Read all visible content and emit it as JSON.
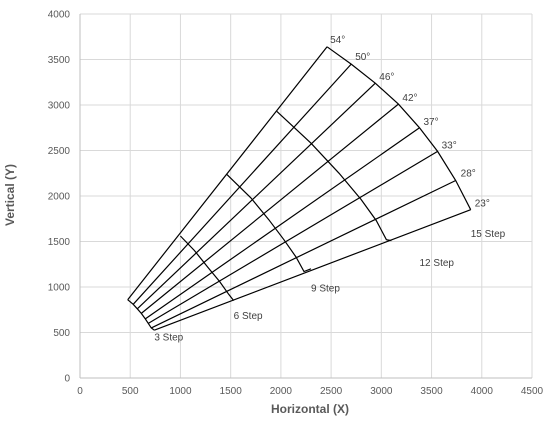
{
  "chart_data": {
    "type": "line",
    "xlabel": "Horizontal (X)",
    "ylabel": "Vertical (Y)",
    "xlim": [
      0,
      4500
    ],
    "ylim": [
      0,
      4000
    ],
    "x_ticks": [
      0,
      500,
      1000,
      1500,
      2000,
      2500,
      3000,
      3500,
      4000,
      4500
    ],
    "y_ticks": [
      0,
      500,
      1000,
      1500,
      2000,
      2500,
      3000,
      3500,
      4000
    ],
    "grid": true,
    "line_color": "#000000",
    "angle_labels": [
      "54°",
      "50°",
      "46°",
      "42°",
      "37°",
      "33°",
      "28°",
      "23°"
    ],
    "step_labels": [
      "3 Step",
      "6 Step",
      "9 Step",
      "12 Step",
      "15 Step"
    ],
    "series": [
      {
        "x": [
          475,
          2460
        ],
        "y": [
          860,
          3640
        ]
      },
      {
        "x": [
          530,
          2700
        ],
        "y": [
          810,
          3450
        ]
      },
      {
        "x": [
          570,
          2940
        ],
        "y": [
          760,
          3240
        ]
      },
      {
        "x": [
          610,
          3170
        ],
        "y": [
          710,
          3010
        ]
      },
      {
        "x": [
          650,
          3380
        ],
        "y": [
          650,
          2750
        ]
      },
      {
        "x": [
          680,
          3560
        ],
        "y": [
          600,
          2490
        ]
      },
      {
        "x": [
          710,
          3740
        ],
        "y": [
          550,
          2170
        ]
      },
      {
        "x": [
          740,
          3890
        ],
        "y": [
          525,
          1850
        ]
      },
      {
        "x": [
          475,
          530,
          570,
          610,
          650,
          680,
          710,
          740
        ],
        "y": [
          860,
          810,
          760,
          710,
          650,
          600,
          550,
          525
        ]
      },
      {
        "x": [
          1000,
          1140,
          1270,
          1390,
          1480,
          1530
        ],
        "y": [
          1560,
          1400,
          1220,
          1060,
          920,
          850
        ]
      },
      {
        "x": [
          1460,
          1700,
          1880,
          2030,
          2150,
          2230,
          2300
        ],
        "y": [
          2240,
          1980,
          1740,
          1520,
          1330,
          1170,
          1200
        ]
      },
      {
        "x": [
          1960,
          2300,
          2580,
          2800,
          2950,
          3050,
          3100
        ],
        "y": [
          2930,
          2580,
          2250,
          1960,
          1730,
          1520,
          1510
        ]
      },
      {
        "x": [
          2460,
          2700,
          2940,
          3170,
          3380,
          3560,
          3740,
          3890
        ],
        "y": [
          3640,
          3450,
          3240,
          3010,
          2750,
          2490,
          2170,
          1850
        ]
      }
    ]
  }
}
